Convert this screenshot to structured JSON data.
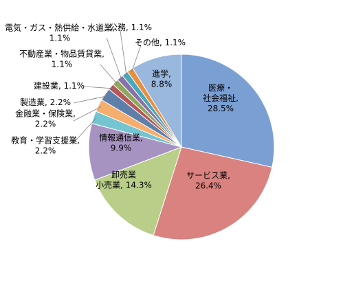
{
  "chart_data": {
    "type": "pie",
    "title": "",
    "legend": "none",
    "start_angle_deg": 0,
    "direction": "clockwise",
    "slices": [
      {
        "label": "医療・社会福祉",
        "value": 28.5,
        "text_lines": [
          "医療・",
          "社会福祉,",
          "28.5%"
        ],
        "color": "#7a9fd3"
      },
      {
        "label": "サービス業",
        "value": 26.4,
        "text_lines": [
          "サービス業,",
          "26.4%"
        ],
        "color": "#d9827f"
      },
      {
        "label": "卸売業小売業",
        "value": 14.3,
        "text_lines": [
          "卸売業",
          "小売業, 14.3%"
        ],
        "color": "#b9cf89"
      },
      {
        "label": "情報通信業",
        "value": 9.9,
        "text_lines": [
          "情報通信業,",
          "9.9%"
        ],
        "color": "#a793c2"
      },
      {
        "label": "教育・学習支援業",
        "value": 2.2,
        "text_lines": [
          "教育・学習支援業,",
          "2.2%"
        ],
        "color": "#74c4d2"
      },
      {
        "label": "金融業・保険業",
        "value": 2.2,
        "text_lines": [
          "金融業・保険業,",
          "2.2%"
        ],
        "color": "#f6ae6f"
      },
      {
        "label": "製造業",
        "value": 2.2,
        "text_lines": [
          "製造業, 2.2%"
        ],
        "color": "#5d7fa9"
      },
      {
        "label": "建設業",
        "value": 1.1,
        "text_lines": [
          "建設業, 1.1%"
        ],
        "color": "#b6575a"
      },
      {
        "label": "不動産業・物品賃貸業",
        "value": 1.1,
        "text_lines": [
          "不動産業・物品賃貸業,",
          "1.1%"
        ],
        "color": "#8ea860"
      },
      {
        "label": "電気・ガス・熱供給・水道業",
        "value": 1.1,
        "text_lines": [
          "電気・ガス・熱供給・水道業,",
          "1.1%"
        ],
        "color": "#8872a8"
      },
      {
        "label": "公務",
        "value": 1.1,
        "text_lines": [
          "公務, 1.1%"
        ],
        "color": "#4aa8bb"
      },
      {
        "label": "その他",
        "value": 1.1,
        "text_lines": [
          "その他, 1.1%"
        ],
        "color": "#e69043"
      },
      {
        "label": "進学",
        "value": 8.8,
        "text_lines": [
          "進学,",
          "8.8%"
        ],
        "color": "#9ab7dd"
      }
    ]
  }
}
